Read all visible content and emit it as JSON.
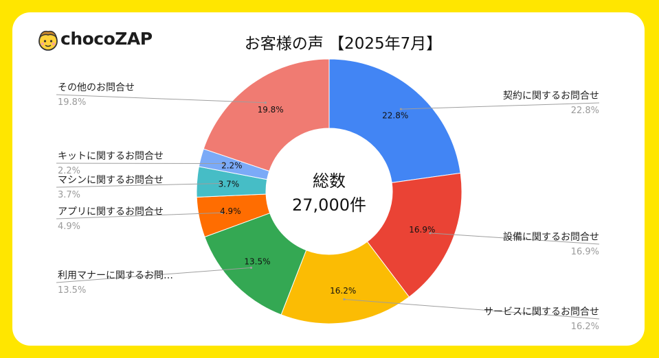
{
  "brand": {
    "logo_text_a": "choco",
    "logo_text_b": "ZAP"
  },
  "title": "お客様の声 【2025年7月】",
  "center": {
    "line1": "総数",
    "line2": "27,000件"
  },
  "colors": {
    "background": "#FFE600",
    "contract": "#4285F4",
    "equipment": "#EA4335",
    "service": "#FBBC04",
    "manners": "#34A853",
    "app": "#FF6D01",
    "machine": "#46BDC6",
    "kit": "#7BAAF7",
    "other": "#F07B72"
  },
  "chart_data": {
    "type": "pie",
    "donut": true,
    "total_label": "27,000件",
    "slices": [
      {
        "name": "契約に関するお問合せ",
        "value": 22.8,
        "label": "22.8%",
        "color": "#4285F4"
      },
      {
        "name": "設備に関するお問合せ",
        "value": 16.9,
        "label": "16.9%",
        "color": "#EA4335"
      },
      {
        "name": "サービスに関するお問合せ",
        "value": 16.2,
        "label": "16.2%",
        "color": "#FBBC04"
      },
      {
        "name": "利用マナーに関するお問…",
        "value": 13.5,
        "label": "13.5%",
        "color": "#34A853"
      },
      {
        "name": "アプリに関するお問合せ",
        "value": 4.9,
        "label": "4.9%",
        "color": "#FF6D01"
      },
      {
        "name": "マシンに関するお問合せ",
        "value": 3.7,
        "label": "3.7%",
        "color": "#46BDC6"
      },
      {
        "name": "キットに関するお問合せ",
        "value": 2.2,
        "label": "2.2%",
        "color": "#7BAAF7"
      },
      {
        "name": "その他のお問合せ",
        "value": 19.8,
        "label": "19.8%",
        "color": "#F07B72"
      }
    ]
  }
}
